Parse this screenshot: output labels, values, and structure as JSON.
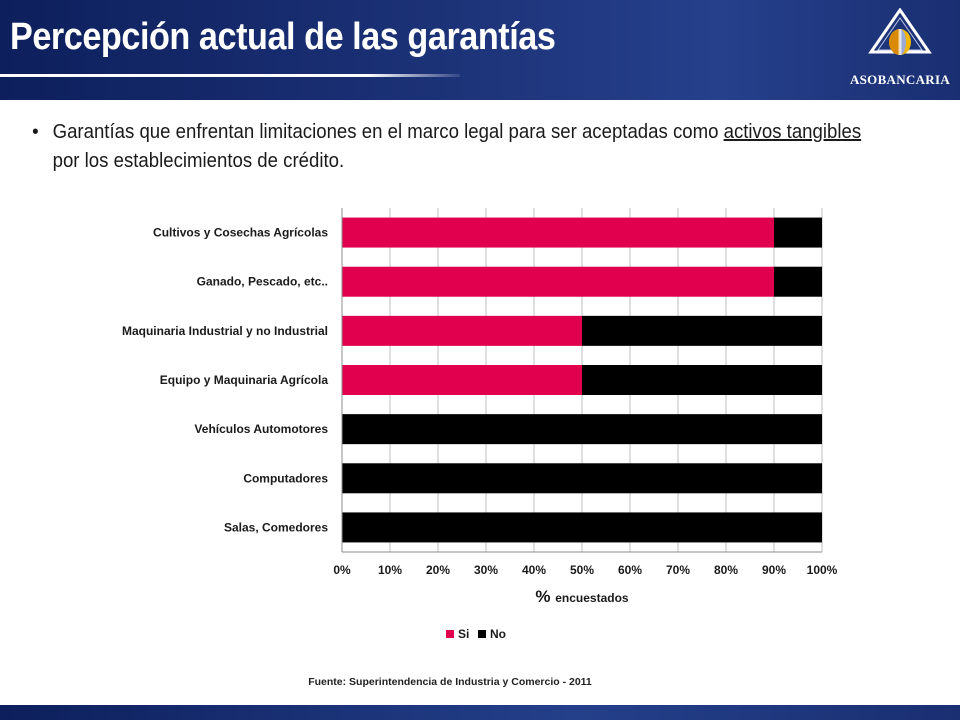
{
  "header": {
    "title": "Percepción actual de las garantías",
    "logo_text": "ASOBANCARIA"
  },
  "bullet": {
    "marker": "•",
    "text_before": "Garantías que enfrentan limitaciones en el marco legal para ser aceptadas como ",
    "text_underlined": "activos tangibles ",
    "text_after": "por los establecimientos de crédito."
  },
  "footer": {
    "source": "Fuente: Superintendencia de Industria y Comercio - 2011"
  },
  "colors": {
    "header_dark": "#0d1f5c",
    "si": "#e0004d",
    "no": "#000000",
    "grid": "#bfbfbf"
  },
  "chart_data": {
    "type": "bar",
    "orientation": "horizontal",
    "stacked": true,
    "categories": [
      "Cultivos y Cosechas Agrícolas",
      "Ganado, Pescado, etc..",
      "Maquinaria Industrial y no Industrial",
      "Equipo y Maquinaria Agrícola",
      "Vehículos Automotores",
      "Computadores",
      "Salas, Comedores"
    ],
    "series": [
      {
        "name": "Si",
        "color": "#e0004d",
        "values": [
          90,
          90,
          50,
          50,
          0,
          0,
          0
        ]
      },
      {
        "name": "No",
        "color": "#000000",
        "values": [
          10,
          10,
          50,
          50,
          100,
          100,
          100
        ]
      }
    ],
    "xlim": [
      0,
      100
    ],
    "xticks": [
      "0%",
      "10%",
      "20%",
      "30%",
      "40%",
      "50%",
      "60%",
      "70%",
      "80%",
      "90%",
      "100%"
    ],
    "xlabel_main": "%",
    "xlabel_sub": "encuestados",
    "grid": true,
    "legend_position": "bottom"
  }
}
